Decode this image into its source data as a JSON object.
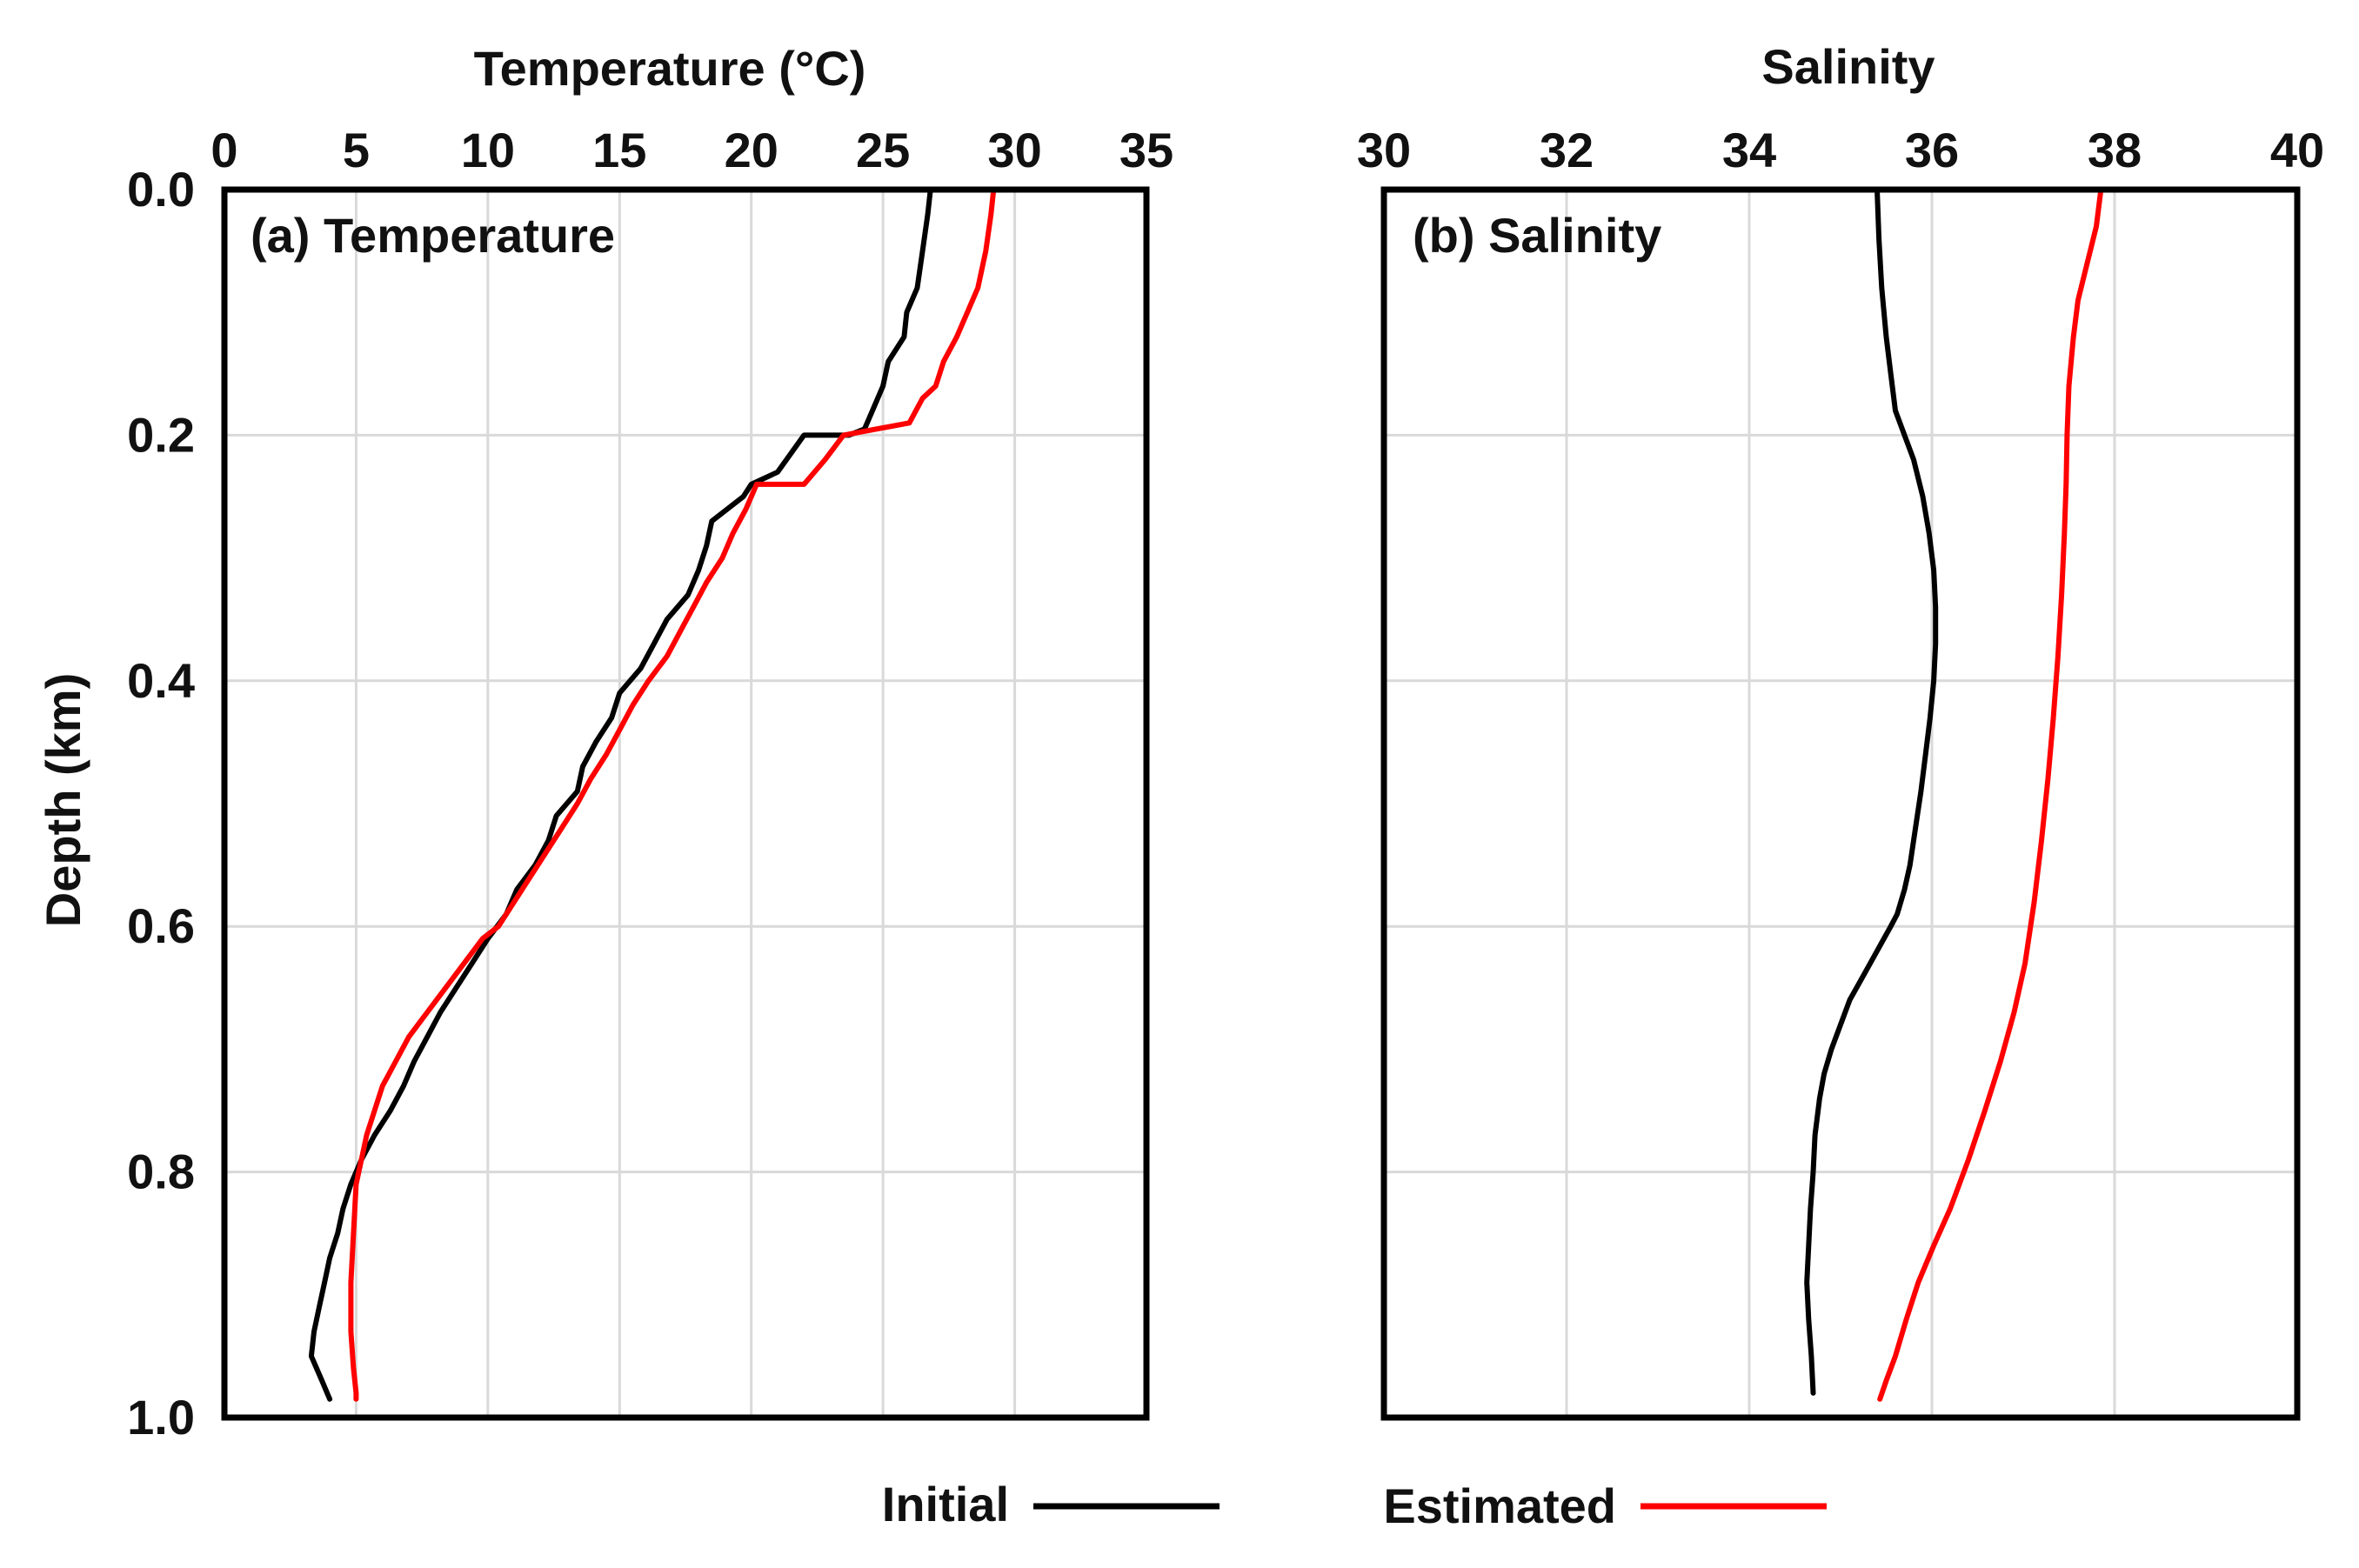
{
  "chart_data": [
    {
      "type": "line",
      "panel_label": "(a) Temperature",
      "xlabel": "Temperature (°C)",
      "ylabel": "Depth (km)",
      "xlim": [
        0,
        35
      ],
      "ylim": [
        0.0,
        1.0
      ],
      "y_inverted": true,
      "x_axis_position": "top",
      "x_ticks": [
        "0",
        "5",
        "10",
        "15",
        "20",
        "25",
        "30",
        "35"
      ],
      "x_tick_values": [
        0,
        5,
        10,
        15,
        20,
        25,
        30,
        35
      ],
      "y_ticks": [
        "0.0",
        "0.2",
        "0.4",
        "0.6",
        "0.8",
        "1.0"
      ],
      "y_tick_values": [
        0.0,
        0.2,
        0.4,
        0.6,
        0.8,
        1.0
      ],
      "grid": true,
      "series": [
        {
          "name": "Initial",
          "color": "#000000",
          "x": [
            26.8,
            26.7,
            26.5,
            26.3,
            25.9,
            25.8,
            25.2,
            25.0,
            24.6,
            24.3,
            23.7,
            22.0,
            21.0,
            20.0,
            19.7,
            18.5,
            18.3,
            18.0,
            17.6,
            16.8,
            16.3,
            15.8,
            15.0,
            14.7,
            14.1,
            13.6,
            13.4,
            12.6,
            12.3,
            11.8,
            11.1,
            10.7,
            10.0,
            9.4,
            8.8,
            8.2,
            7.7,
            7.2,
            6.8,
            6.3,
            5.7,
            5.2,
            4.8,
            4.5,
            4.3,
            4.0,
            3.8,
            3.6,
            3.4,
            3.3,
            3.5,
            3.7,
            3.9,
            4.0
          ],
          "y": [
            0.0,
            0.02,
            0.05,
            0.08,
            0.1,
            0.12,
            0.14,
            0.16,
            0.18,
            0.195,
            0.2,
            0.2,
            0.23,
            0.24,
            0.25,
            0.27,
            0.29,
            0.31,
            0.33,
            0.35,
            0.37,
            0.39,
            0.41,
            0.43,
            0.45,
            0.47,
            0.49,
            0.51,
            0.53,
            0.55,
            0.57,
            0.59,
            0.61,
            0.63,
            0.65,
            0.67,
            0.69,
            0.71,
            0.73,
            0.75,
            0.77,
            0.79,
            0.81,
            0.83,
            0.85,
            0.87,
            0.89,
            0.91,
            0.93,
            0.95,
            0.96,
            0.97,
            0.98,
            0.985
          ]
        },
        {
          "name": "Estimated",
          "color": "#ff0000",
          "x": [
            29.2,
            29.1,
            28.9,
            28.6,
            28.2,
            27.8,
            27.3,
            27.0,
            26.5,
            26.0,
            23.5,
            22.8,
            22.0,
            20.2,
            19.8,
            19.3,
            18.9,
            18.3,
            17.8,
            17.3,
            16.8,
            16.1,
            15.5,
            15.0,
            14.5,
            13.9,
            13.4,
            12.8,
            12.2,
            11.6,
            11.0,
            10.4,
            9.8,
            9.1,
            8.4,
            7.7,
            7.0,
            6.5,
            6.0,
            5.7,
            5.4,
            5.2,
            5.0,
            4.9,
            4.8,
            4.8,
            4.9,
            5.0,
            5.0
          ],
          "y": [
            0.0,
            0.02,
            0.05,
            0.08,
            0.1,
            0.12,
            0.14,
            0.16,
            0.17,
            0.19,
            0.2,
            0.22,
            0.24,
            0.24,
            0.26,
            0.28,
            0.3,
            0.32,
            0.34,
            0.36,
            0.38,
            0.4,
            0.42,
            0.44,
            0.46,
            0.48,
            0.5,
            0.52,
            0.54,
            0.56,
            0.58,
            0.6,
            0.61,
            0.63,
            0.65,
            0.67,
            0.69,
            0.71,
            0.73,
            0.75,
            0.77,
            0.79,
            0.81,
            0.85,
            0.89,
            0.93,
            0.96,
            0.98,
            0.985
          ]
        }
      ]
    },
    {
      "type": "line",
      "panel_label": "(b) Salinity",
      "xlabel": "Salinity",
      "ylabel": "",
      "xlim": [
        30,
        40
      ],
      "ylim": [
        0.0,
        1.0
      ],
      "y_inverted": true,
      "x_axis_position": "top",
      "x_ticks": [
        "30",
        "32",
        "34",
        "36",
        "38",
        "40"
      ],
      "x_tick_values": [
        30,
        32,
        34,
        36,
        38,
        40
      ],
      "y_ticks": [],
      "y_tick_values": [
        0.0,
        0.2,
        0.4,
        0.6,
        0.8,
        1.0
      ],
      "grid": true,
      "series": [
        {
          "name": "Initial",
          "color": "#000000",
          "x": [
            35.4,
            35.42,
            35.45,
            35.5,
            35.55,
            35.6,
            35.7,
            35.8,
            35.9,
            35.97,
            36.02,
            36.04,
            36.04,
            36.02,
            35.98,
            35.93,
            35.88,
            35.82,
            35.76,
            35.7,
            35.62,
            35.55,
            35.4,
            35.25,
            35.1,
            35.0,
            34.9,
            34.82,
            34.77,
            34.72,
            34.7,
            34.67,
            34.65,
            34.63,
            34.65,
            34.68,
            34.7
          ],
          "y": [
            0.0,
            0.04,
            0.08,
            0.12,
            0.15,
            0.18,
            0.2,
            0.22,
            0.25,
            0.28,
            0.31,
            0.34,
            0.37,
            0.4,
            0.43,
            0.46,
            0.49,
            0.52,
            0.55,
            0.57,
            0.59,
            0.6,
            0.62,
            0.64,
            0.66,
            0.68,
            0.7,
            0.72,
            0.74,
            0.77,
            0.8,
            0.83,
            0.86,
            0.89,
            0.92,
            0.95,
            0.98
          ]
        },
        {
          "name": "Estimated",
          "color": "#ff0000",
          "x": [
            37.85,
            37.8,
            37.7,
            37.6,
            37.55,
            37.5,
            37.48,
            37.47,
            37.45,
            37.42,
            37.38,
            37.33,
            37.27,
            37.2,
            37.12,
            37.02,
            36.9,
            36.75,
            36.58,
            36.4,
            36.2,
            36.02,
            35.85,
            35.72,
            35.6,
            35.5,
            35.43
          ],
          "y": [
            0.0,
            0.03,
            0.06,
            0.09,
            0.12,
            0.16,
            0.2,
            0.24,
            0.28,
            0.33,
            0.38,
            0.43,
            0.48,
            0.53,
            0.58,
            0.63,
            0.67,
            0.71,
            0.75,
            0.79,
            0.83,
            0.86,
            0.89,
            0.92,
            0.95,
            0.97,
            0.985
          ]
        }
      ]
    }
  ],
  "legend": {
    "placement": "bottom",
    "items": [
      {
        "label": "Initial",
        "color": "#000000"
      },
      {
        "label": "Estimated",
        "color": "#ff0000"
      }
    ]
  }
}
